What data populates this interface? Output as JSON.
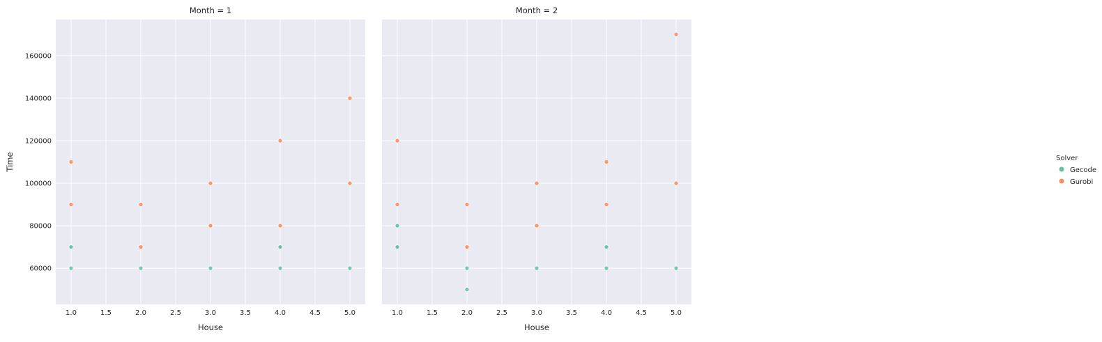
{
  "chart_data": [
    {
      "type": "scatter",
      "title": "Month = 1",
      "xlabel": "House",
      "ylabel": "Time",
      "xlim": [
        0.78,
        5.22
      ],
      "ylim": [
        43000,
        177000
      ],
      "xticks": [
        "1.0",
        "1.5",
        "2.0",
        "2.5",
        "3.0",
        "3.5",
        "4.0",
        "4.5",
        "5.0"
      ],
      "yticks": [
        "60000",
        "80000",
        "100000",
        "120000",
        "140000",
        "160000"
      ],
      "grid": true,
      "series": [
        {
          "name": "Gecode",
          "color": "#66c2a5",
          "points": [
            [
              1,
              60000
            ],
            [
              1,
              70000
            ],
            [
              2,
              60000
            ],
            [
              3,
              60000
            ],
            [
              4,
              60000
            ],
            [
              4,
              70000
            ],
            [
              5,
              60000
            ]
          ]
        },
        {
          "name": "Gurobi",
          "color": "#fc8d62",
          "points": [
            [
              1,
              90000
            ],
            [
              1,
              110000
            ],
            [
              2,
              70000
            ],
            [
              2,
              90000
            ],
            [
              3,
              80000
            ],
            [
              3,
              100000
            ],
            [
              4,
              80000
            ],
            [
              4,
              120000
            ],
            [
              5,
              100000
            ],
            [
              5,
              140000
            ]
          ]
        }
      ]
    },
    {
      "type": "scatter",
      "title": "Month = 2",
      "xlabel": "House",
      "ylabel": "",
      "xlim": [
        0.78,
        5.22
      ],
      "ylim": [
        43000,
        177000
      ],
      "xticks": [
        "1.0",
        "1.5",
        "2.0",
        "2.5",
        "3.0",
        "3.5",
        "4.0",
        "4.5",
        "5.0"
      ],
      "yticks": [],
      "grid": true,
      "series": [
        {
          "name": "Gecode",
          "color": "#66c2a5",
          "points": [
            [
              1,
              70000
            ],
            [
              1,
              80000
            ],
            [
              2,
              50000
            ],
            [
              2,
              60000
            ],
            [
              3,
              60000
            ],
            [
              4,
              60000
            ],
            [
              4,
              70000
            ],
            [
              5,
              60000
            ]
          ]
        },
        {
          "name": "Gurobi",
          "color": "#fc8d62",
          "points": [
            [
              1,
              90000
            ],
            [
              1,
              120000
            ],
            [
              2,
              70000
            ],
            [
              2,
              90000
            ],
            [
              3,
              80000
            ],
            [
              3,
              100000
            ],
            [
              4,
              90000
            ],
            [
              4,
              110000
            ],
            [
              5,
              100000
            ],
            [
              5,
              170000
            ]
          ]
        }
      ]
    }
  ],
  "legend": {
    "title": "Solver",
    "placement": "right",
    "items": [
      {
        "label": "Gecode",
        "color": "#66c2a5"
      },
      {
        "label": "Gurobi",
        "color": "#fc8d62"
      }
    ]
  }
}
